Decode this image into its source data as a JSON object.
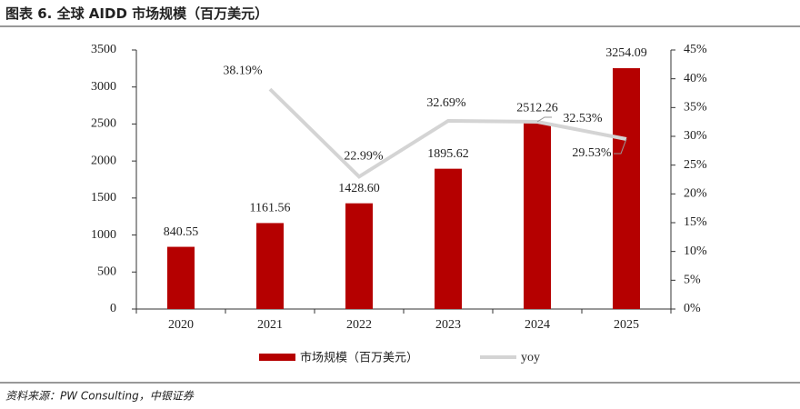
{
  "title": "图表 6. 全球 AIDD 市场规模（百万美元）",
  "source": "资料来源：PW Consulting，中银证券",
  "chart_data": {
    "type": "bar-line",
    "categories": [
      "2020",
      "2021",
      "2022",
      "2023",
      "2024",
      "2025"
    ],
    "series": [
      {
        "name": "市场规模（百万美元）",
        "type": "bar",
        "color": "#b50000",
        "values": [
          840.55,
          1161.56,
          1428.6,
          1895.62,
          2512.26,
          3254.09
        ],
        "value_labels": [
          "840.55",
          "1161.56",
          "1428.60",
          "1895.62",
          "2512.26",
          "3254.09"
        ]
      },
      {
        "name": "yoy",
        "type": "line",
        "axis": "y2",
        "color": "#d4d4d4",
        "values": [
          null,
          38.19,
          22.99,
          32.69,
          32.53,
          29.53
        ],
        "value_labels": [
          null,
          "38.19%",
          "22.99%",
          "32.69%",
          "32.53%",
          "29.53%"
        ]
      }
    ],
    "ylim": [
      0,
      3500
    ],
    "yticks": [
      0,
      500,
      1000,
      1500,
      2000,
      2500,
      3000,
      3500
    ],
    "y2lim": [
      0,
      45
    ],
    "y2ticks": [
      {
        "value": 0,
        "label": "0%"
      },
      {
        "value": 5,
        "label": "5%"
      },
      {
        "value": 10,
        "label": "10%"
      },
      {
        "value": 15,
        "label": "15%"
      },
      {
        "value": 20,
        "label": "20%"
      },
      {
        "value": 25,
        "label": "25%"
      },
      {
        "value": 30,
        "label": "30%"
      },
      {
        "value": 35,
        "label": "35%"
      },
      {
        "value": 40,
        "label": "40%"
      },
      {
        "value": 45,
        "label": "45%"
      }
    ],
    "legend": "bottom"
  }
}
